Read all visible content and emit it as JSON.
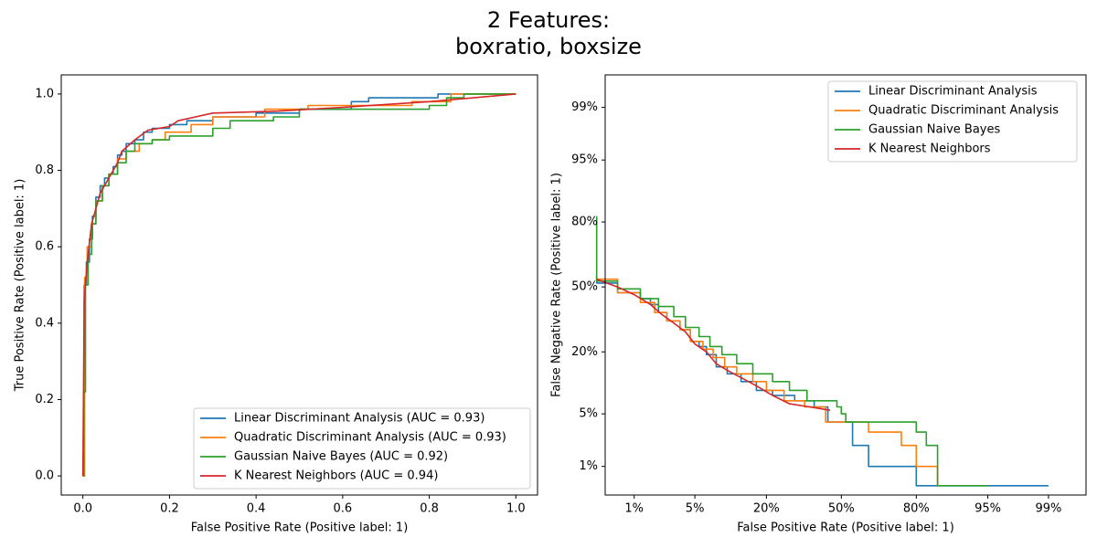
{
  "figure": {
    "title_line1": "2 Features:",
    "title_line2": "boxratio, boxsize"
  },
  "colors": {
    "Linear Discriminant Analysis": "#1f77b4",
    "Quadratic Discriminant Analysis": "#ff7f0e",
    "Gaussian Naive Bayes": "#2ca02c",
    "K Nearest Neighbors": "#d62728"
  },
  "chart_data": [
    {
      "type": "line",
      "name": "ROC curve",
      "xlabel": "False Positive Rate (Positive label: 1)",
      "ylabel": "True Positive Rate (Positive label: 1)",
      "xlim": [
        -0.05,
        1.05
      ],
      "ylim": [
        -0.05,
        1.05
      ],
      "xticks": [
        0.0,
        0.2,
        0.4,
        0.6,
        0.8,
        1.0
      ],
      "xtick_labels": [
        "0.0",
        "0.2",
        "0.4",
        "0.6",
        "0.8",
        "1.0"
      ],
      "yticks": [
        0.0,
        0.2,
        0.4,
        0.6,
        0.8,
        1.0
      ],
      "ytick_labels": [
        "0.0",
        "0.2",
        "0.4",
        "0.6",
        "0.8",
        "1.0"
      ],
      "grid": false,
      "legend_placement": "lower-right",
      "series": [
        {
          "name": "Linear Discriminant Analysis (AUC = 0.93)",
          "color": "#1f77b4",
          "x": [
            0,
            0.003,
            0.003,
            0.008,
            0.008,
            0.015,
            0.015,
            0.022,
            0.022,
            0.03,
            0.03,
            0.04,
            0.04,
            0.05,
            0.05,
            0.06,
            0.06,
            0.07,
            0.07,
            0.08,
            0.08,
            0.09,
            0.09,
            0.1,
            0.1,
            0.12,
            0.12,
            0.14,
            0.14,
            0.16,
            0.16,
            0.2,
            0.2,
            0.24,
            0.24,
            0.3,
            0.3,
            0.4,
            0.4,
            0.5,
            0.5,
            0.62,
            0.62,
            0.66,
            0.66,
            0.82,
            0.82,
            0.99
          ],
          "y": [
            0,
            0,
            0.5,
            0.5,
            0.56,
            0.56,
            0.62,
            0.62,
            0.68,
            0.68,
            0.73,
            0.73,
            0.76,
            0.76,
            0.78,
            0.78,
            0.79,
            0.79,
            0.81,
            0.81,
            0.84,
            0.84,
            0.85,
            0.85,
            0.87,
            0.87,
            0.88,
            0.88,
            0.9,
            0.9,
            0.91,
            0.91,
            0.92,
            0.92,
            0.93,
            0.93,
            0.94,
            0.94,
            0.95,
            0.95,
            0.96,
            0.96,
            0.98,
            0.98,
            0.99,
            0.99,
            1.0,
            1.0
          ]
        },
        {
          "name": "Quadratic Discriminant Analysis (AUC = 0.93)",
          "color": "#ff7f0e",
          "x": [
            0,
            0.004,
            0.004,
            0.01,
            0.01,
            0.02,
            0.02,
            0.03,
            0.03,
            0.045,
            0.045,
            0.06,
            0.06,
            0.08,
            0.08,
            0.1,
            0.1,
            0.13,
            0.13,
            0.16,
            0.16,
            0.19,
            0.19,
            0.25,
            0.25,
            0.3,
            0.3,
            0.42,
            0.42,
            0.52,
            0.52,
            0.76,
            0.76,
            0.85,
            0.85,
            1.0
          ],
          "y": [
            0,
            0,
            0.52,
            0.52,
            0.6,
            0.6,
            0.66,
            0.66,
            0.72,
            0.72,
            0.76,
            0.76,
            0.79,
            0.79,
            0.83,
            0.83,
            0.85,
            0.85,
            0.87,
            0.87,
            0.88,
            0.88,
            0.9,
            0.9,
            0.92,
            0.92,
            0.94,
            0.94,
            0.96,
            0.96,
            0.97,
            0.97,
            0.98,
            0.98,
            1.0,
            1.0
          ]
        },
        {
          "name": "Gaussian Naive Bayes (AUC = 0.92)",
          "color": "#2ca02c",
          "x": [
            0,
            0.002,
            0.002,
            0.006,
            0.006,
            0.012,
            0.012,
            0.02,
            0.02,
            0.03,
            0.03,
            0.045,
            0.045,
            0.06,
            0.06,
            0.08,
            0.08,
            0.1,
            0.1,
            0.12,
            0.12,
            0.16,
            0.16,
            0.2,
            0.2,
            0.3,
            0.3,
            0.34,
            0.34,
            0.44,
            0.44,
            0.5,
            0.5,
            0.8,
            0.8,
            0.84,
            0.84,
            0.88,
            0.88,
            1.0
          ],
          "y": [
            0,
            0,
            0.22,
            0.22,
            0.5,
            0.5,
            0.58,
            0.58,
            0.66,
            0.66,
            0.72,
            0.72,
            0.76,
            0.76,
            0.79,
            0.79,
            0.82,
            0.82,
            0.85,
            0.85,
            0.87,
            0.87,
            0.88,
            0.88,
            0.89,
            0.89,
            0.91,
            0.91,
            0.93,
            0.93,
            0.94,
            0.94,
            0.96,
            0.96,
            0.97,
            0.97,
            0.99,
            0.99,
            1.0,
            1.0
          ]
        },
        {
          "name": "K Nearest Neighbors (AUC = 0.94)",
          "color": "#d62728",
          "x": [
            0,
            0.003,
            0.01,
            0.02,
            0.04,
            0.06,
            0.08,
            0.09,
            0.1,
            0.12,
            0.15,
            0.2,
            0.22,
            0.3,
            0.45,
            0.6,
            0.8,
            1.0
          ],
          "y": [
            0,
            0.46,
            0.56,
            0.66,
            0.74,
            0.78,
            0.82,
            0.85,
            0.86,
            0.88,
            0.905,
            0.915,
            0.93,
            0.95,
            0.955,
            0.965,
            0.98,
            1.0
          ]
        }
      ]
    },
    {
      "type": "line",
      "name": "DET curve",
      "xlabel": "False Positive Rate (Positive label: 1)",
      "ylabel": "False Negative Rate (Positive label: 1)",
      "scale": "normal deviate (probit)",
      "xtick_labels": [
        "1%",
        "5%",
        "20%",
        "50%",
        "80%",
        "95%",
        "99%"
      ],
      "ytick_labels": [
        "1%",
        "5%",
        "20%",
        "50%",
        "80%",
        "95%",
        "99%"
      ],
      "ticks_fraction": [
        0.01,
        0.05,
        0.2,
        0.5,
        0.8,
        0.95,
        0.99
      ],
      "grid": false,
      "legend_placement": "upper-right",
      "series": [
        {
          "name": "Linear Discriminant Analysis",
          "color": "#1f77b4",
          "x": [
            0.003,
            0.003,
            0.006,
            0.006,
            0.012,
            0.012,
            0.016,
            0.016,
            0.02,
            0.02,
            0.025,
            0.025,
            0.035,
            0.035,
            0.045,
            0.045,
            0.055,
            0.055,
            0.065,
            0.065,
            0.08,
            0.08,
            0.1,
            0.1,
            0.13,
            0.13,
            0.17,
            0.17,
            0.22,
            0.22,
            0.3,
            0.3,
            0.38,
            0.38,
            0.44,
            0.44,
            0.55,
            0.55,
            0.62,
            0.62,
            0.8,
            0.8,
            0.99
          ],
          "y": [
            0.56,
            0.52,
            0.52,
            0.47,
            0.47,
            0.44,
            0.44,
            0.41,
            0.41,
            0.37,
            0.37,
            0.33,
            0.33,
            0.29,
            0.29,
            0.24,
            0.24,
            0.22,
            0.22,
            0.19,
            0.19,
            0.15,
            0.15,
            0.13,
            0.13,
            0.11,
            0.11,
            0.09,
            0.09,
            0.08,
            0.08,
            0.07,
            0.07,
            0.06,
            0.06,
            0.04,
            0.04,
            0.02,
            0.02,
            0.01,
            0.01,
            0.005,
            0.005
          ]
        },
        {
          "name": "Quadratic Discriminant Analysis",
          "color": "#ff7f0e",
          "x": [
            0.003,
            0.003,
            0.006,
            0.006,
            0.012,
            0.012,
            0.018,
            0.018,
            0.025,
            0.025,
            0.035,
            0.035,
            0.045,
            0.045,
            0.06,
            0.06,
            0.075,
            0.075,
            0.095,
            0.095,
            0.12,
            0.12,
            0.16,
            0.16,
            0.2,
            0.2,
            0.26,
            0.26,
            0.34,
            0.34,
            0.43,
            0.43,
            0.62,
            0.62,
            0.75,
            0.75,
            0.8,
            0.8,
            0.86,
            0.86
          ],
          "y": [
            0.56,
            0.54,
            0.54,
            0.47,
            0.47,
            0.42,
            0.42,
            0.37,
            0.37,
            0.33,
            0.33,
            0.29,
            0.29,
            0.24,
            0.24,
            0.21,
            0.21,
            0.18,
            0.18,
            0.15,
            0.15,
            0.13,
            0.13,
            0.11,
            0.11,
            0.09,
            0.09,
            0.07,
            0.07,
            0.06,
            0.06,
            0.04,
            0.04,
            0.03,
            0.03,
            0.02,
            0.02,
            0.01,
            0.01,
            0.005
          ]
        },
        {
          "name": "Gaussian Naive Bayes",
          "color": "#2ca02c",
          "x": [
            0.003,
            0.003,
            0.006,
            0.006,
            0.012,
            0.012,
            0.02,
            0.02,
            0.03,
            0.03,
            0.04,
            0.04,
            0.055,
            0.055,
            0.07,
            0.07,
            0.09,
            0.09,
            0.12,
            0.12,
            0.16,
            0.16,
            0.22,
            0.22,
            0.28,
            0.28,
            0.35,
            0.35,
            0.48,
            0.48,
            0.5,
            0.5,
            0.52,
            0.52,
            0.8,
            0.8,
            0.83,
            0.83,
            0.86,
            0.86,
            0.95
          ],
          "y": [
            0.82,
            0.53,
            0.53,
            0.49,
            0.49,
            0.44,
            0.44,
            0.4,
            0.4,
            0.35,
            0.35,
            0.3,
            0.3,
            0.26,
            0.26,
            0.22,
            0.22,
            0.19,
            0.19,
            0.16,
            0.16,
            0.13,
            0.13,
            0.11,
            0.11,
            0.09,
            0.09,
            0.07,
            0.07,
            0.06,
            0.06,
            0.05,
            0.05,
            0.04,
            0.04,
            0.03,
            0.03,
            0.02,
            0.02,
            0.005,
            0.005
          ]
        },
        {
          "name": "K Nearest Neighbors",
          "color": "#d62728",
          "x": [
            0.003,
            0.006,
            0.01,
            0.016,
            0.022,
            0.03,
            0.04,
            0.05,
            0.065,
            0.08,
            0.1,
            0.13,
            0.17,
            0.22,
            0.28,
            0.36,
            0.45
          ],
          "y": [
            0.54,
            0.5,
            0.46,
            0.41,
            0.36,
            0.32,
            0.28,
            0.23,
            0.2,
            0.16,
            0.14,
            0.12,
            0.1,
            0.08,
            0.065,
            0.06,
            0.055
          ]
        }
      ]
    }
  ]
}
